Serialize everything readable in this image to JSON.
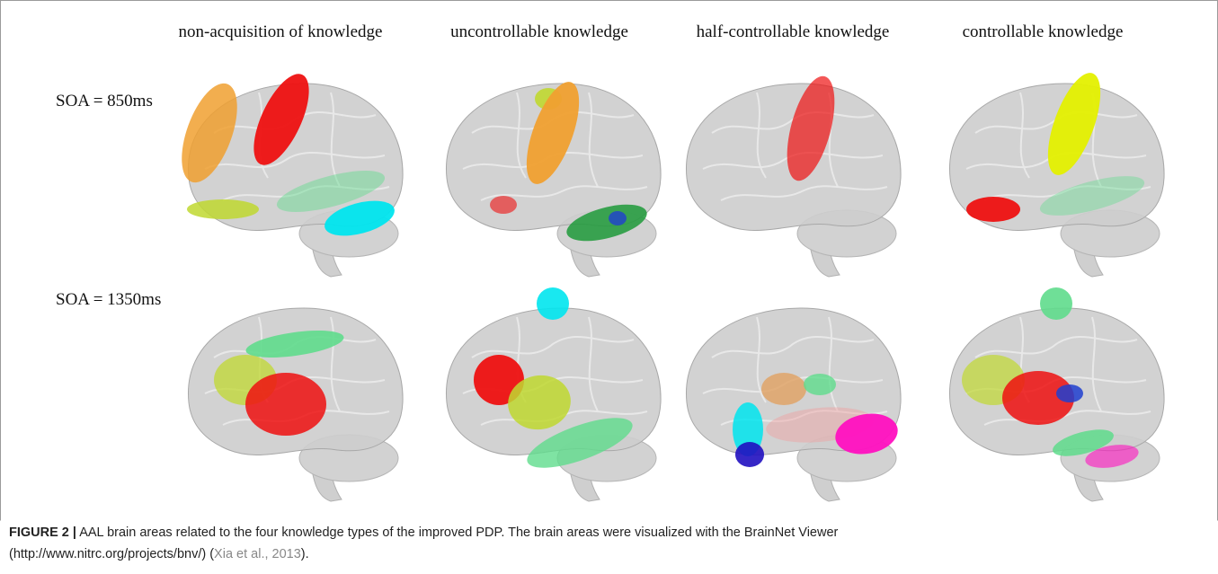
{
  "figure": {
    "columns": [
      "non-acquisition of knowledge",
      "uncontrollable knowledge",
      "half-controllable knowledge",
      "controllable knowledge"
    ],
    "rows": [
      "SOA = 850ms",
      "SOA = 1350ms"
    ],
    "caption": {
      "label": "FIGURE 2 |",
      "line1": "AAL brain areas related to the four knowledge types of the improved PDP. The brain areas were visualized with the BrainNet Viewer",
      "line2_start": "(http://www.nitrc.org/projects/bnv/) (",
      "citation": "Xia et al., 2013",
      "line2_end": ")."
    }
  }
}
